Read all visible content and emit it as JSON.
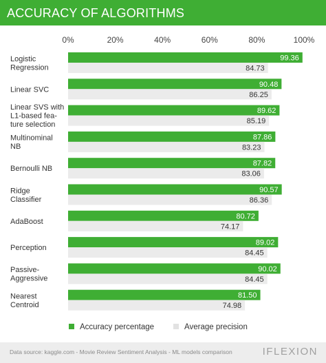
{
  "header": {
    "title": "ACCURACY OF ALGORITHMS"
  },
  "footer": {
    "source": "Data source: kaggle.com - Movie Review Sentiment Analysis - ML models comparison",
    "logo": "IFLEXION"
  },
  "colors": {
    "accuracy": "#3fae34",
    "precision": "#ebebeb",
    "header": "#3fae34"
  },
  "chart_data": {
    "type": "bar",
    "orientation": "horizontal",
    "title": "ACCURACY OF ALGORITHMS",
    "xlim": [
      0,
      100
    ],
    "x_ticks": [
      "0%",
      "20%",
      "40%",
      "60%",
      "80%",
      "100%"
    ],
    "x_tick_values": [
      0,
      20,
      40,
      60,
      80,
      100
    ],
    "grid": false,
    "legend_position": "bottom-left",
    "categories": [
      [
        "Logistic",
        "Regression"
      ],
      [
        "Linear SVC"
      ],
      [
        "Linear SVS with",
        "L1-based fea-",
        "ture selection"
      ],
      [
        "Multinominal",
        "NB"
      ],
      [
        "Bernoulli NB"
      ],
      [
        "Ridge",
        "Classifier"
      ],
      [
        "AdaBoost"
      ],
      [
        "Perception"
      ],
      [
        "Passive-",
        "Aggressive"
      ],
      [
        "Nearest",
        "Centroid"
      ]
    ],
    "series": [
      {
        "name": "Accuracy percentage",
        "color": "#3fae34",
        "values": [
          99.36,
          90.48,
          89.62,
          87.86,
          87.82,
          90.57,
          80.72,
          89.02,
          90.02,
          81.5
        ],
        "labels": [
          "99.36",
          "90.48",
          "89.62",
          "87.86",
          "87.82",
          "90.57",
          "80.72",
          "89.02",
          "90.02",
          "81.50"
        ]
      },
      {
        "name": "Average precision",
        "color": "#ebebeb",
        "values": [
          84.73,
          86.25,
          85.19,
          83.23,
          83.06,
          86.36,
          74.17,
          84.45,
          84.45,
          74.98
        ],
        "labels": [
          "84.73",
          "86.25",
          "85.19",
          "83.23",
          "83.06",
          "86.36",
          "74.17",
          "84.45",
          "84.45",
          "74.98"
        ]
      }
    ]
  }
}
